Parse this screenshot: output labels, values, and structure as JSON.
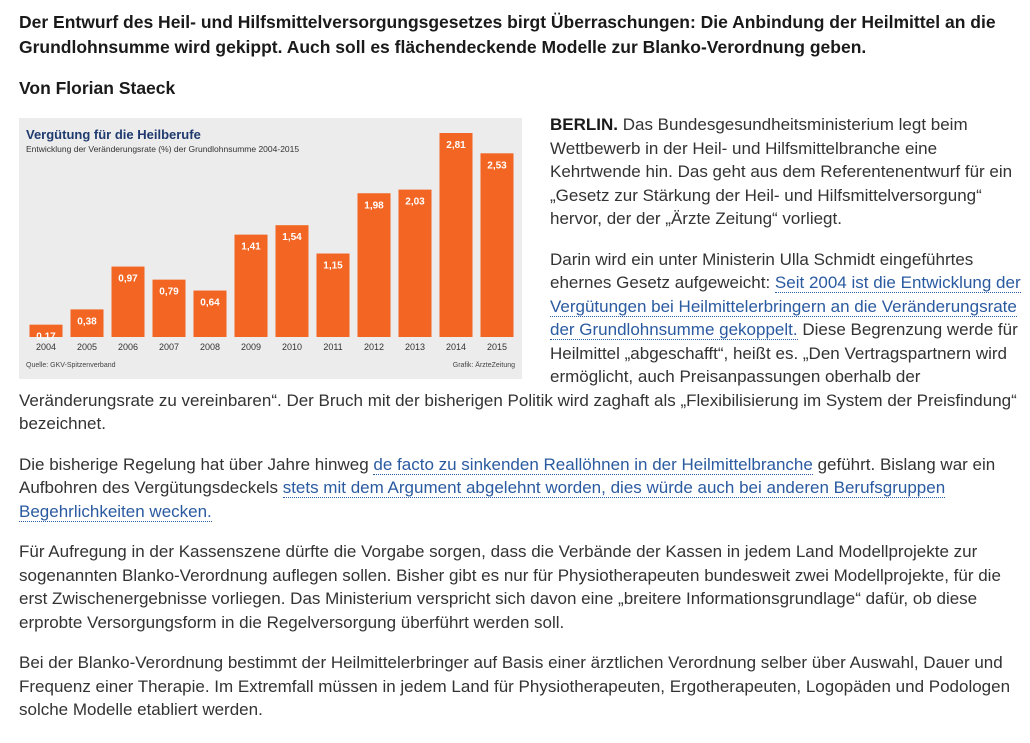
{
  "article": {
    "lead": "Der Entwurf des Heil- und Hilfsmittelversorgungsgesetzes birgt Überraschungen: Die Anbindung der Heilmittel an die Grundlohnsumme wird gekippt. Auch soll es flächendeckende Modelle zur Blanko-Verordnung geben.",
    "byline": "Von Florian Staeck",
    "p1": {
      "dateline": "BERLIN.",
      "text": " Das Bundesgesundheitsministerium legt beim Wettbewerb in der Heil- und Hilfsmittelbranche eine Kehrtwende hin. Das geht aus dem Referentenentwurf für ein „Gesetz zur Stärkung der Heil- und Hilfsmittelversorgung“ hervor, der der „Ärzte Zeitung“ vorliegt."
    },
    "p2": {
      "t1": "Darin wird ein unter Ministerin Ulla Schmidt eingeführtes ehernes Gesetz aufgeweicht: ",
      "link": "Seit 2004 ist die Entwicklung der Vergütungen bei Heilmittelerbringern an die Veränderungsrate der Grundlohnsumme gekoppelt.",
      "t2": " Diese Begrenzung werde für Heilmittel „abgeschafft“, heißt es. „Den Vertragspartnern wird ermöglicht, auch Preisanpassungen oberhalb der Veränderungsrate zu vereinbaren“. Der Bruch mit der bisherigen Politik wird zaghaft als „Flexibilisierung im System der Preisfindung“ bezeichnet."
    },
    "p3": {
      "t1": "Die bisherige Regelung hat über Jahre hinweg ",
      "link1": "de facto zu sinkenden Reallöhnen in der Heilmittelbranche",
      "t2": " geführt. Bislang war ein Aufbohren des Vergütungsdeckels ",
      "link2": "stets mit dem Argument abgelehnt worden, dies würde auch bei anderen Berufsgruppen Begehrlichkeiten wecken."
    },
    "p4": "Für Aufregung in der Kassenszene dürfte die Vorgabe sorgen, dass die Verbände der Kassen in jedem Land Modellprojekte zur sogenannten Blanko-Verordnung auflegen sollen. Bisher gibt es nur für Physiotherapeuten bundesweit zwei Modellprojekte, für die erst Zwischenergebnisse vorliegen. Das Ministerium verspricht sich davon eine „breitere Informationsgrundlage“ dafür, ob diese erprobte Versorgungsform in die Regelversorgung überführt werden soll.",
    "p5": "Bei der Blanko-Verordnung bestimmt der Heilmittelerbringer auf Basis einer ärztlichen Verordnung selber über Auswahl, Dauer und Frequenz einer Therapie. Im Extremfall müssen in jedem Land für Physiotherapeuten, Ergotherapeuten, Logopäden und Podologen solche Modelle etabliert werden."
  },
  "chart_data": {
    "type": "bar",
    "title": "Vergütung für die Heilberufe",
    "subtitle": "Entwicklung der Veränderungsrate (%) der Grundlohnsumme 2004-2015",
    "categories": [
      "2004",
      "2005",
      "2006",
      "2007",
      "2008",
      "2009",
      "2010",
      "2011",
      "2012",
      "2013",
      "2014",
      "2015"
    ],
    "values": [
      0.17,
      0.38,
      0.97,
      0.79,
      0.64,
      1.41,
      1.54,
      1.15,
      1.98,
      2.03,
      2.81,
      2.53
    ],
    "value_labels": [
      "0,17",
      "0,38",
      "0,97",
      "0,79",
      "0,64",
      "1,41",
      "1,54",
      "1,15",
      "1,98",
      "2,03",
      "2,81",
      "2,53"
    ],
    "source": "Quelle: GKV-Spitzenverband",
    "credit": "Grafik: ÄrzteZeitung",
    "ylim": [
      0,
      2.81
    ],
    "bar_color": "#f26522",
    "title_color": "#1f3a6e",
    "background": "#ececec"
  }
}
